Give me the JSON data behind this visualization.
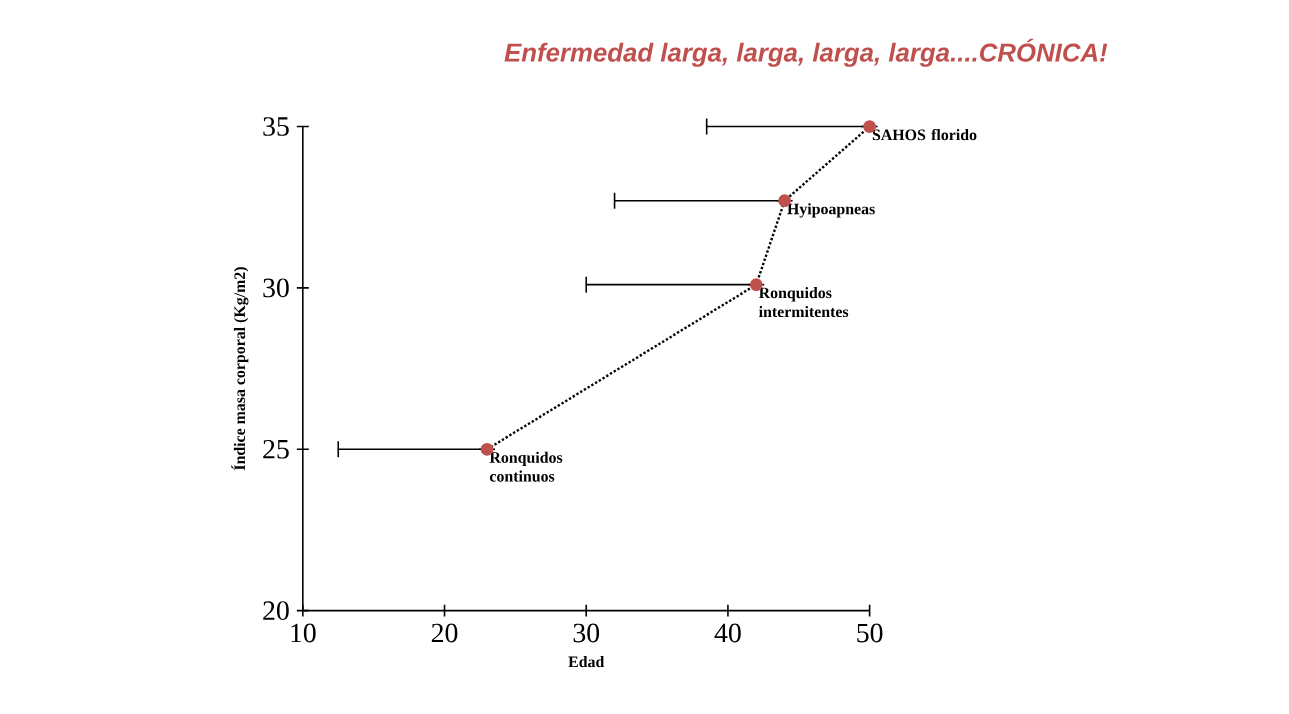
{
  "chart_data": {
    "type": "line",
    "title": "Enfermedad larga, larga, larga, larga....CRÓNICA!",
    "xlabel": "Edad",
    "ylabel": "Índice masa corporal (Kg/m2)",
    "x": [
      23,
      42,
      44,
      50
    ],
    "values": [
      25,
      30.1,
      32.7,
      35
    ],
    "xerrors": [
      [
        12.5,
        23
      ],
      [
        30,
        42
      ],
      [
        32,
        44
      ],
      [
        38.5,
        50
      ]
    ],
    "color": "#c0504d",
    "marker": "circle",
    "line_style": "dotted",
    "xlim": [
      10,
      50
    ],
    "xticks": [
      10,
      20,
      30,
      40,
      50
    ],
    "ylim": [
      20,
      35
    ],
    "yticks": [
      20,
      25,
      30,
      35
    ],
    "annotations": [
      {
        "text": "Ronquidos continuos",
        "x": 23,
        "y": 25
      },
      {
        "text": "Ronquidos intermitentes",
        "x": 42,
        "y": 30.1
      },
      {
        "text": "Hyipoapneas",
        "x": 44,
        "y": 32.7
      },
      {
        "text": "SAHOS florido",
        "x": 50,
        "y": 35
      }
    ]
  }
}
